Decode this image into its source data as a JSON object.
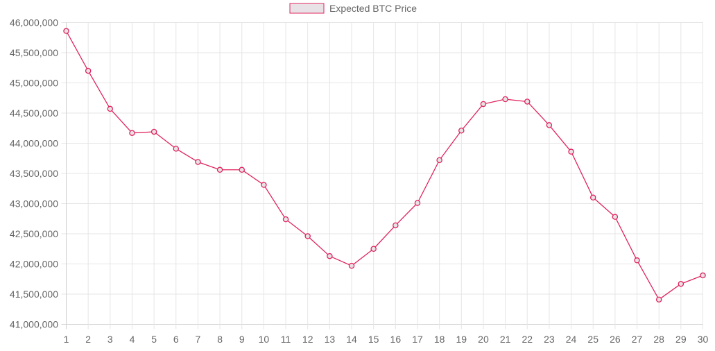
{
  "chart_data": {
    "type": "line",
    "title": "",
    "xlabel": "",
    "ylabel": "",
    "categories": [
      "1",
      "2",
      "3",
      "4",
      "5",
      "6",
      "7",
      "8",
      "9",
      "10",
      "11",
      "12",
      "13",
      "14",
      "15",
      "16",
      "17",
      "18",
      "19",
      "20",
      "21",
      "22",
      "23",
      "24",
      "25",
      "26",
      "27",
      "28",
      "29",
      "30"
    ],
    "series": [
      {
        "name": "Expected BTC Price",
        "values": [
          45860000,
          45200000,
          44570000,
          44170000,
          44190000,
          43910000,
          43690000,
          43560000,
          43560000,
          43310000,
          42740000,
          42460000,
          42130000,
          41970000,
          42250000,
          42640000,
          43010000,
          43720000,
          44210000,
          44650000,
          44730000,
          44690000,
          44300000,
          43860000,
          43100000,
          42780000,
          42060000,
          41410000,
          41670000,
          41810000
        ],
        "border_color": "#e0245e",
        "fill_color": "#e8e2e6"
      }
    ],
    "ylim": [
      41000000,
      46000000
    ],
    "yticks": [
      "46,000,000",
      "45,500,000",
      "45,000,000",
      "44,500,000",
      "44,000,000",
      "43,500,000",
      "43,000,000",
      "42,500,000",
      "42,000,000",
      "41,500,000",
      "41,000,000"
    ],
    "ytick_values": [
      46000000,
      45500000,
      45000000,
      44500000,
      44000000,
      43500000,
      43000000,
      42500000,
      42000000,
      41500000,
      41000000
    ],
    "grid": true,
    "legend_placement": "top-center",
    "grid_color": "#e5e5e5",
    "axis_color": "#d0d0d0",
    "label_color": "#666666"
  }
}
